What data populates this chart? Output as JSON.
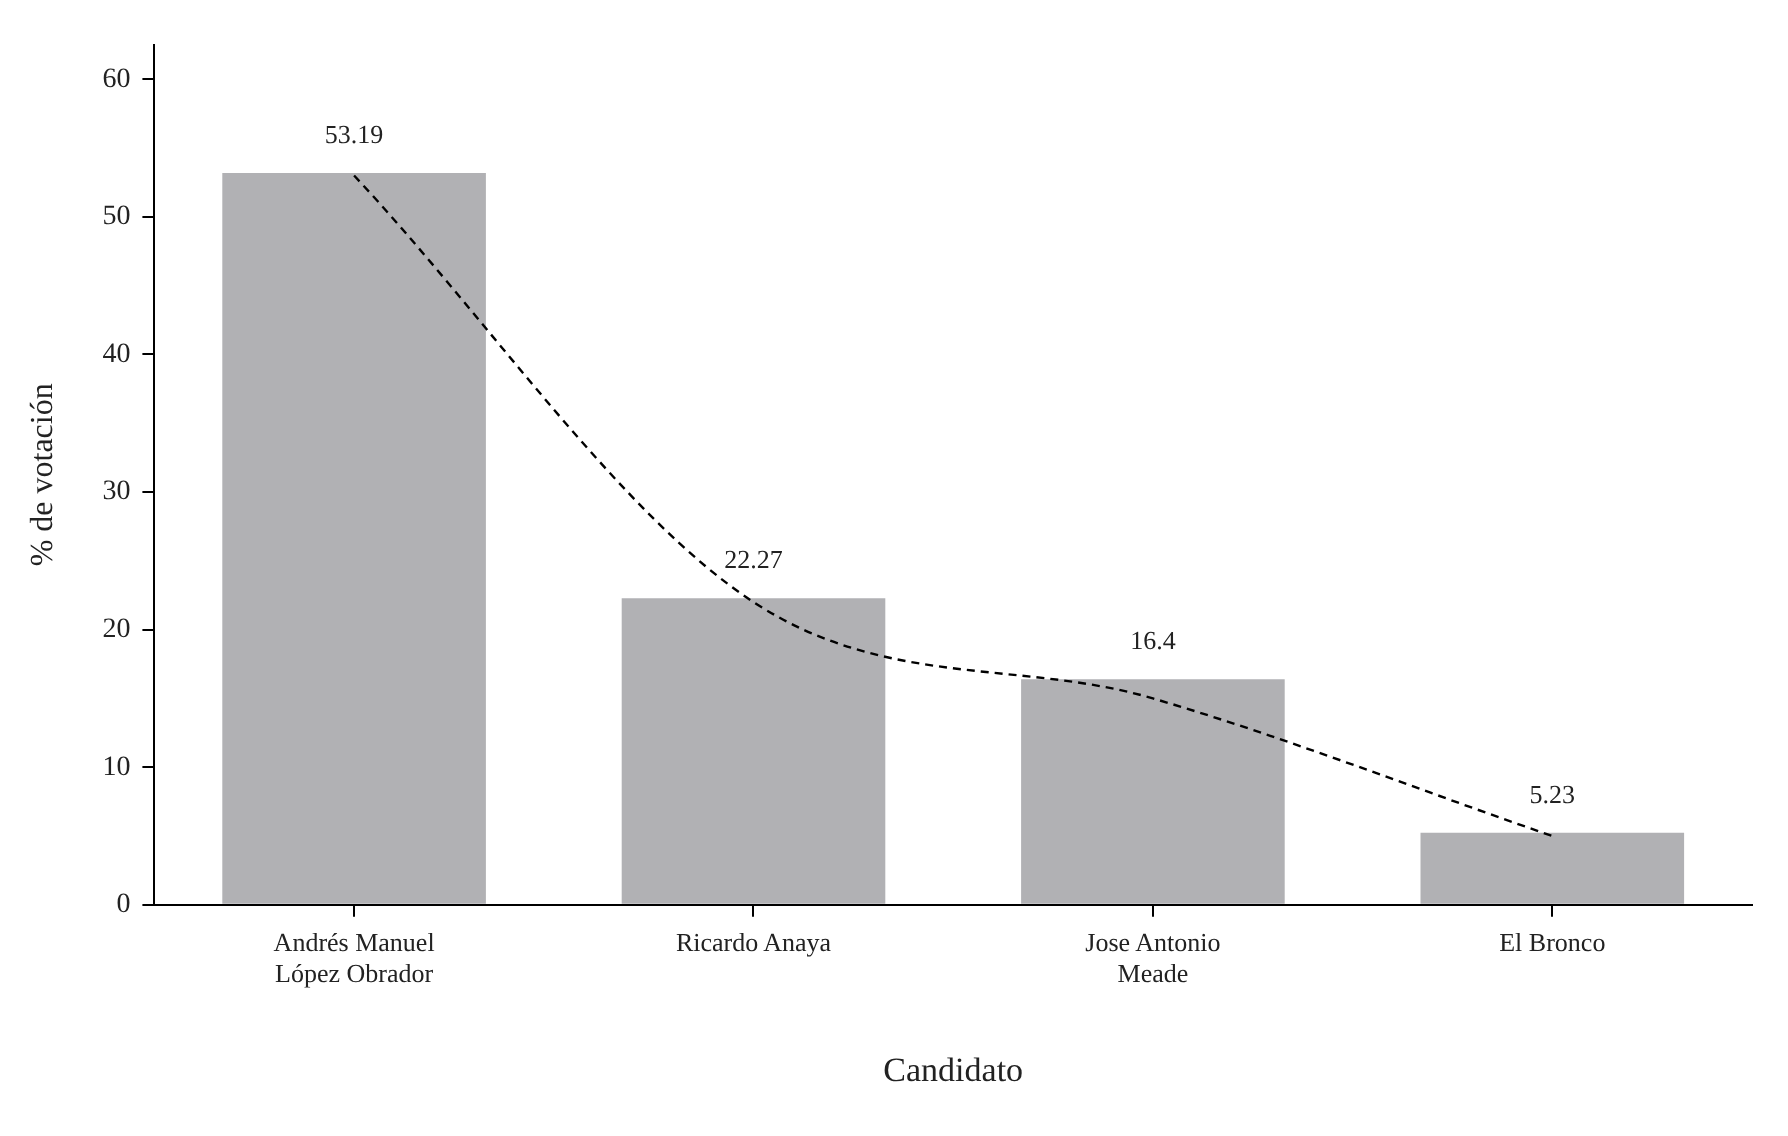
{
  "chart_data": {
    "type": "bar",
    "xlabel": "Candidato",
    "ylabel": "% de votación",
    "categories": [
      "Andrés Manuel López Obrador",
      "Ricardo Anaya",
      "Jose Antonio Meade",
      "El Bronco"
    ],
    "series": [
      {
        "color": "#b1b1b4",
        "values": [
          53.19,
          22.27,
          16.4,
          5.23
        ],
        "value_labels": [
          "53.19",
          "22.27",
          "16.4",
          "5.23"
        ]
      },
      {
        "type": "line",
        "color": "#000000",
        "line_style": "dashed",
        "marker": "none",
        "values": [
          53,
          22,
          15,
          5
        ]
      }
    ],
    "ylim": [
      0,
      62.5
    ],
    "yticks": [
      0,
      10,
      20,
      30,
      40,
      50,
      60
    ],
    "grid": false,
    "legend": false
  }
}
